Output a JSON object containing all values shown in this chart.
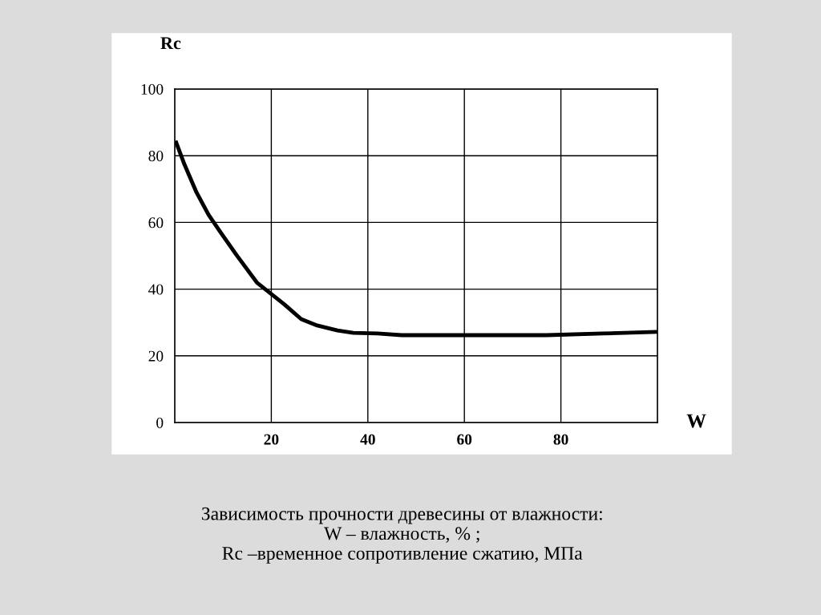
{
  "chart_data": {
    "type": "line",
    "xlabel": "W",
    "ylabel": "Rc",
    "x": [
      0.3,
      2,
      4.5,
      7,
      9.5,
      12.8,
      17,
      20.3,
      22.8,
      26.2,
      29.5,
      33.7,
      37,
      42,
      47,
      63.7,
      77,
      88.7,
      100
    ],
    "series": [
      {
        "color": "#000000",
        "values": [
          83.9,
          77.4,
          69,
          62.3,
          57,
          50.2,
          42,
          38.2,
          35.3,
          31,
          29.1,
          27.6,
          26.9,
          26.7,
          26.2,
          26.2,
          26.2,
          26.7,
          27.2
        ]
      }
    ],
    "xlim": [
      0,
      100
    ],
    "ylim": [
      0,
      100
    ],
    "xticks": [
      20,
      40,
      60,
      80
    ],
    "yticks": [
      0,
      20,
      40,
      60,
      80,
      100
    ],
    "grid": true,
    "legend": false,
    "marker": "none",
    "line_style": "solid",
    "annotations": [
      "Зависимость прочности древесины от влажности:\nW – влажность, % ;\nRc –временное сопротивление сжатию, МПа"
    ]
  }
}
